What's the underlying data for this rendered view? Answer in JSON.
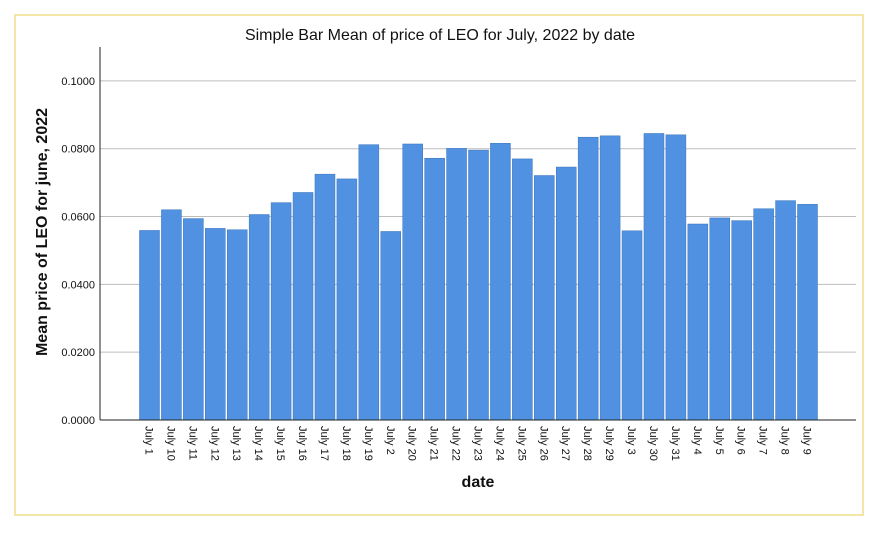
{
  "chart_data": {
    "type": "bar",
    "title": "Simple Bar Mean of price of LEO for July, 2022 by date",
    "xlabel": "date",
    "ylabel": "Mean price of LEO for june, 2022",
    "ylim": [
      0,
      0.11
    ],
    "yticks": [
      "0.0000",
      "0.0200",
      "0.0400",
      "0.0600",
      "0.0800",
      "0.1000"
    ],
    "ytick_values": [
      0,
      0.02,
      0.04,
      0.06,
      0.08,
      0.1
    ],
    "grid": true,
    "bar_color": "#5091e2",
    "categories": [
      "July 1",
      "July 10",
      "July 11",
      "July 12",
      "July 13",
      "July 14",
      "July 15",
      "July 16",
      "July 17",
      "July 18",
      "July 19",
      "July 2",
      "July 20",
      "July 21",
      "July 22",
      "July 23",
      "July 24",
      "July 25",
      "July 26",
      "July 27",
      "July 28",
      "July 29",
      "July 3",
      "July 30",
      "July 31",
      "July 4",
      "July 5",
      "July 6",
      "July 7",
      "July 8",
      "July 9"
    ],
    "values": [
      0.0559,
      0.062,
      0.0594,
      0.0565,
      0.0561,
      0.0606,
      0.0641,
      0.0671,
      0.0725,
      0.0711,
      0.0812,
      0.0556,
      0.0814,
      0.0772,
      0.0801,
      0.0796,
      0.0816,
      0.077,
      0.0721,
      0.0746,
      0.0834,
      0.0838,
      0.0558,
      0.0845,
      0.0841,
      0.0578,
      0.0596,
      0.0588,
      0.0623,
      0.0647,
      0.0636
    ]
  }
}
